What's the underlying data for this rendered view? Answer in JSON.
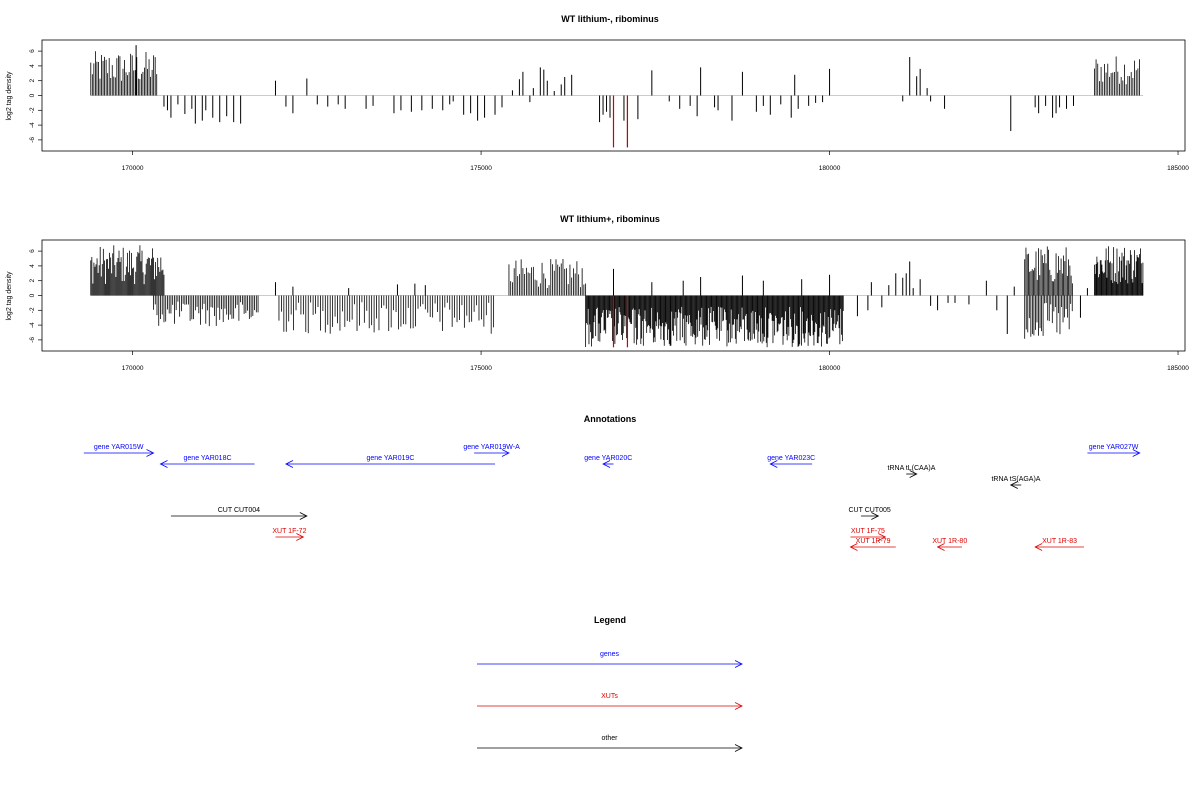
{
  "chart_data": [
    {
      "type": "bar",
      "title": "WT lithium-, ribominus",
      "ylabel": "log2 tag density",
      "xlabel": "",
      "xlim": [
        168700,
        185100
      ],
      "ylim": [
        -7.5,
        7.5
      ],
      "xticks": [
        170000,
        175000,
        180000,
        185000
      ],
      "yticks": [
        -6,
        -4,
        -2,
        0,
        2,
        4,
        6
      ],
      "grid": false,
      "colors": {
        "bars": "#000000",
        "highlight": "#cc0000"
      },
      "dense_regions": [
        {
          "x_from": 169400,
          "x_to": 170350,
          "sign": 1,
          "min": 1.5,
          "max": 6.0,
          "step": 22
        },
        {
          "x_from": 183800,
          "x_to": 184450,
          "sign": 1,
          "min": 1.5,
          "max": 5.5,
          "step": 24
        }
      ],
      "bars": [
        [
          170050,
          6.8
        ],
        [
          170450,
          -1.5
        ],
        [
          170500,
          -2.0
        ],
        [
          170550,
          -3.0
        ],
        [
          170650,
          -1.2
        ],
        [
          170750,
          -2.5
        ],
        [
          170850,
          -1.8
        ],
        [
          170900,
          -3.8
        ],
        [
          171000,
          -3.4
        ],
        [
          171050,
          -2.0
        ],
        [
          171150,
          -3.0
        ],
        [
          171250,
          -3.6
        ],
        [
          171350,
          -2.8
        ],
        [
          171450,
          -3.6
        ],
        [
          171550,
          -3.8
        ],
        [
          172050,
          2.0
        ],
        [
          172200,
          -1.5
        ],
        [
          172300,
          -2.4
        ],
        [
          172500,
          2.3
        ],
        [
          172650,
          -1.2
        ],
        [
          172800,
          -1.5
        ],
        [
          172950,
          -1.2
        ],
        [
          173050,
          -1.8
        ],
        [
          173350,
          -1.8
        ],
        [
          173450,
          -1.4
        ],
        [
          173750,
          -2.4
        ],
        [
          173850,
          -2.0
        ],
        [
          174000,
          -2.2
        ],
        [
          174150,
          -2.0
        ],
        [
          174300,
          -1.8
        ],
        [
          174450,
          -2.0
        ],
        [
          174550,
          -1.2
        ],
        [
          174600,
          -0.8
        ],
        [
          174750,
          -2.6
        ],
        [
          174850,
          -2.4
        ],
        [
          174950,
          -3.4
        ],
        [
          175050,
          -3.0
        ],
        [
          175200,
          -2.6
        ],
        [
          175300,
          -1.6
        ],
        [
          175450,
          0.7
        ],
        [
          175550,
          2.2
        ],
        [
          175600,
          3.2
        ],
        [
          175700,
          -0.9
        ],
        [
          175750,
          1.0
        ],
        [
          175850,
          3.8
        ],
        [
          175900,
          3.5
        ],
        [
          175950,
          2.0
        ],
        [
          176050,
          0.6
        ],
        [
          176150,
          1.5
        ],
        [
          176200,
          2.5
        ],
        [
          176300,
          2.8
        ],
        [
          176700,
          -3.6
        ],
        [
          176750,
          -2.6
        ],
        [
          176800,
          -2.2
        ],
        [
          176850,
          -3.0
        ],
        [
          176900,
          -7.0
        ],
        [
          177050,
          -3.4
        ],
        [
          177100,
          -7.0
        ],
        [
          177250,
          -3.2
        ],
        [
          177450,
          3.4
        ],
        [
          177700,
          -0.8
        ],
        [
          177850,
          -1.8
        ],
        [
          178000,
          -1.4
        ],
        [
          178100,
          -2.8
        ],
        [
          178150,
          3.8
        ],
        [
          178350,
          -1.6
        ],
        [
          178400,
          -2.0
        ],
        [
          178600,
          -3.4
        ],
        [
          178750,
          3.2
        ],
        [
          178950,
          -2.2
        ],
        [
          179050,
          -1.4
        ],
        [
          179150,
          -2.6
        ],
        [
          179300,
          -1.2
        ],
        [
          179450,
          -3.0
        ],
        [
          179500,
          2.8
        ],
        [
          179550,
          -1.8
        ],
        [
          179700,
          -1.4
        ],
        [
          179800,
          -1.0
        ],
        [
          179900,
          -0.9
        ],
        [
          180000,
          3.6
        ],
        [
          181050,
          -0.8
        ],
        [
          181150,
          5.2
        ],
        [
          181250,
          2.6
        ],
        [
          181300,
          3.6
        ],
        [
          181400,
          1.0
        ],
        [
          181450,
          -0.8
        ],
        [
          181650,
          -1.8
        ],
        [
          182600,
          -4.8
        ],
        [
          182950,
          -1.6
        ],
        [
          183000,
          -2.4
        ],
        [
          183100,
          -1.4
        ],
        [
          183200,
          -3.0
        ],
        [
          183250,
          -2.4
        ],
        [
          183300,
          -1.6
        ],
        [
          183400,
          -1.8
        ],
        [
          183500,
          -1.4
        ]
      ],
      "highlights": [
        [
          176900,
          -7.0
        ],
        [
          177100,
          -7.0
        ]
      ]
    },
    {
      "type": "bar",
      "title": "WT lithium+, ribominus",
      "ylabel": "log2 tag density",
      "xlabel": "",
      "xlim": [
        168700,
        185100
      ],
      "ylim": [
        -7.5,
        7.5
      ],
      "xticks": [
        170000,
        175000,
        180000,
        185000
      ],
      "yticks": [
        -6,
        -4,
        -2,
        0,
        2,
        4,
        6
      ],
      "grid": false,
      "colors": {
        "bars": "#000000",
        "highlight": "#cc0000"
      },
      "dense_regions": [
        {
          "x_from": 169400,
          "x_to": 170450,
          "sign": 1,
          "min": 1.5,
          "max": 6.8,
          "step": 15
        },
        {
          "x_from": 170300,
          "x_to": 171800,
          "sign": -1,
          "min": 0.8,
          "max": 4.2,
          "step": 25
        },
        {
          "x_from": 172100,
          "x_to": 175200,
          "sign": -1,
          "min": 0.8,
          "max": 5.2,
          "step": 35
        },
        {
          "x_from": 175400,
          "x_to": 176500,
          "sign": 1,
          "min": 1.0,
          "max": 5.0,
          "step": 25
        },
        {
          "x_from": 176500,
          "x_to": 180200,
          "sign": -1,
          "min": 1.5,
          "max": 7.0,
          "step": 12
        },
        {
          "x_from": 182800,
          "x_to": 183500,
          "sign": 1,
          "min": 1.5,
          "max": 6.8,
          "step": 18
        },
        {
          "x_from": 182800,
          "x_to": 183500,
          "sign": -1,
          "min": 1.0,
          "max": 6.0,
          "step": 22
        },
        {
          "x_from": 183800,
          "x_to": 184500,
          "sign": 1,
          "min": 1.5,
          "max": 7.0,
          "step": 12
        }
      ],
      "bars": [
        [
          172050,
          1.8
        ],
        [
          172300,
          1.2
        ],
        [
          173100,
          1.0
        ],
        [
          173800,
          1.5
        ],
        [
          174050,
          1.6
        ],
        [
          174200,
          1.4
        ],
        [
          176900,
          3.6
        ],
        [
          177450,
          1.8
        ],
        [
          177900,
          2.0
        ],
        [
          178150,
          2.5
        ],
        [
          178750,
          2.7
        ],
        [
          179050,
          2.0
        ],
        [
          179600,
          2.2
        ],
        [
          180000,
          2.8
        ],
        [
          180400,
          -2.8
        ],
        [
          180550,
          -2.0
        ],
        [
          180600,
          1.8
        ],
        [
          180750,
          -1.6
        ],
        [
          180850,
          1.4
        ],
        [
          180950,
          3.0
        ],
        [
          181050,
          2.4
        ],
        [
          181100,
          3.0
        ],
        [
          181150,
          4.6
        ],
        [
          181200,
          1.0
        ],
        [
          181300,
          2.2
        ],
        [
          181450,
          -1.4
        ],
        [
          181550,
          -2.0
        ],
        [
          181700,
          -1.0
        ],
        [
          181800,
          -1.0
        ],
        [
          182000,
          -1.2
        ],
        [
          182250,
          2.0
        ],
        [
          182400,
          -2.0
        ],
        [
          182550,
          -5.2
        ],
        [
          182650,
          1.2
        ],
        [
          183600,
          -3.0
        ],
        [
          183700,
          1.0
        ]
      ],
      "highlights": [
        [
          176900,
          -7.0
        ],
        [
          177100,
          -7.0
        ]
      ]
    }
  ],
  "annotations": {
    "title": "Annotations",
    "features": [
      {
        "label": "gene YAR015W",
        "x_from": 169300,
        "x_to": 170300,
        "row": 0,
        "color": "#0000ff"
      },
      {
        "label": "gene YAR018C",
        "x_from": 171750,
        "x_to": 170400,
        "row": 1,
        "color": "#0000ff"
      },
      {
        "label": "gene YAR019C",
        "x_from": 175200,
        "x_to": 172200,
        "row": 1,
        "color": "#0000ff"
      },
      {
        "label": "gene YAR019W-A",
        "x_from": 174900,
        "x_to": 175400,
        "row": 0,
        "color": "#0000ff"
      },
      {
        "label": "gene YAR020C",
        "x_from": 176900,
        "x_to": 176750,
        "row": 1,
        "color": "#0000ff"
      },
      {
        "label": "gene YAR023C",
        "x_from": 179750,
        "x_to": 179150,
        "row": 1,
        "color": "#0000ff"
      },
      {
        "label": "gene YAR027W",
        "x_from": 183700,
        "x_to": 184450,
        "row": 0,
        "color": "#0000ff"
      },
      {
        "label": "tRNA tL(CAA)A",
        "x_from": 181100,
        "x_to": 181250,
        "row": 2,
        "color": "#000000"
      },
      {
        "label": "tRNA tS(AGA)A",
        "x_from": 182750,
        "x_to": 182600,
        "row": 3,
        "color": "#000000"
      },
      {
        "label": "CUT CUT004",
        "x_from": 170550,
        "x_to": 172500,
        "row": 4,
        "color": "#000000"
      },
      {
        "label": "CUT CUT005",
        "x_from": 180450,
        "x_to": 180700,
        "row": 4,
        "color": "#000000"
      },
      {
        "label": "XUT 1F-72",
        "x_from": 172050,
        "x_to": 172450,
        "row": 5,
        "color": "#dd0000"
      },
      {
        "label": "XUT 1F-75",
        "x_from": 180300,
        "x_to": 180800,
        "row": 5,
        "color": "#dd0000"
      },
      {
        "label": "XUT 1R-79",
        "x_from": 180950,
        "x_to": 180300,
        "row": 6,
        "color": "#dd0000"
      },
      {
        "label": "XUT 1R-80",
        "x_from": 181900,
        "x_to": 181550,
        "row": 6,
        "color": "#dd0000"
      },
      {
        "label": "XUT 1R-83",
        "x_from": 183650,
        "x_to": 182950,
        "row": 6,
        "color": "#dd0000"
      }
    ]
  },
  "legend": {
    "title": "Legend",
    "items": [
      {
        "label": "genes",
        "color": "#0000ff"
      },
      {
        "label": "XUTs",
        "color": "#dd0000"
      },
      {
        "label": "other",
        "color": "#000000"
      }
    ]
  }
}
